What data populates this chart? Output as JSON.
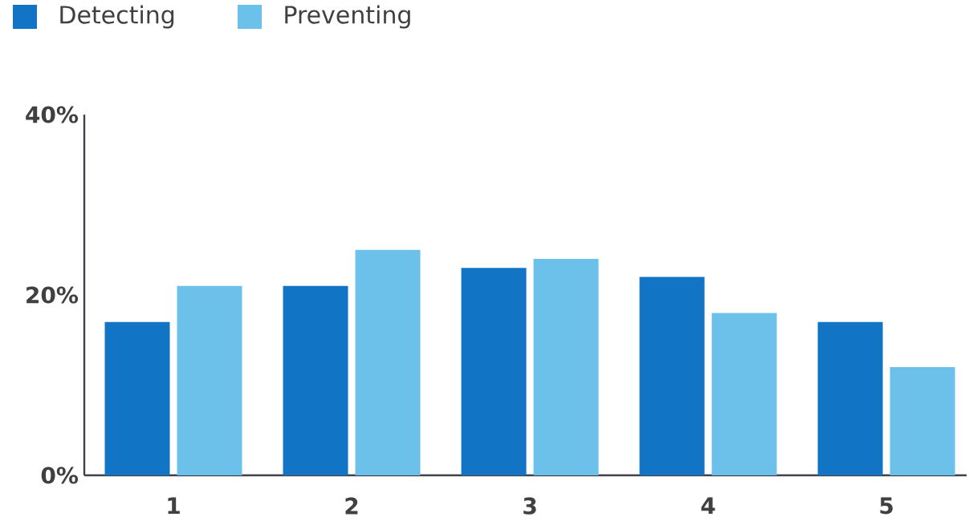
{
  "chart_data": {
    "type": "bar",
    "categories": [
      "1",
      "2",
      "3",
      "4",
      "5"
    ],
    "series": [
      {
        "name": "Detecting",
        "color": "#1174c5",
        "values": [
          17,
          21,
          23,
          22,
          17
        ]
      },
      {
        "name": "Preventing",
        "color": "#6cc1ea",
        "values": [
          21,
          25,
          24,
          18,
          12
        ]
      }
    ],
    "ylim": [
      0,
      40
    ],
    "yticks": [
      {
        "value": 0,
        "label": "0%"
      },
      {
        "value": 20,
        "label": "20%"
      },
      {
        "value": 40,
        "label": "40%"
      }
    ],
    "legend": "top left",
    "grid": false
  }
}
